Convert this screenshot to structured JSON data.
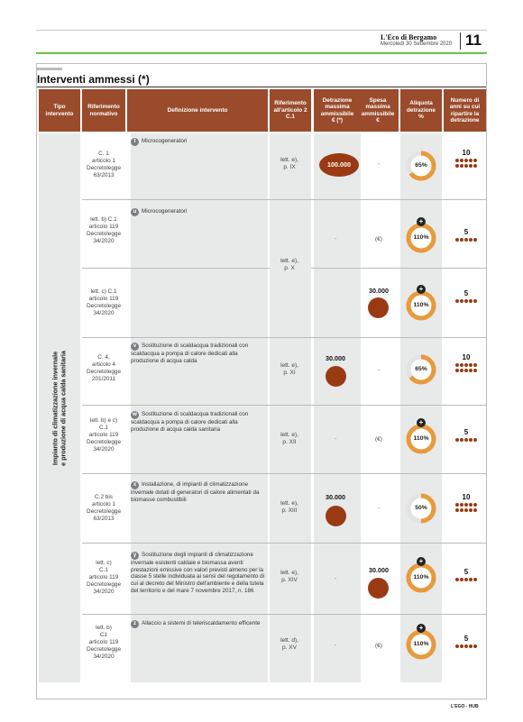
{
  "masthead": {
    "paper_name": "L'Eco di Bergamo",
    "date": "Mercoledì 30 Settembre 2020",
    "page_number": "11"
  },
  "panel": {
    "title": "Interventi ammessi (*)"
  },
  "headers": {
    "tipo": [
      "Tipo",
      "intervento"
    ],
    "riferimento": [
      "Riferimento",
      "normativo"
    ],
    "definizione": "Definizione intervento",
    "art2": [
      "Riferimento",
      "all'articolo 2",
      "C.1"
    ],
    "detrazione": [
      "Detrazione",
      "massima",
      "ammissibile",
      "€ (*)"
    ],
    "spesa": [
      "Spesa",
      "massima",
      "ammissibile",
      "€"
    ],
    "aliquota": [
      "Aliquota",
      "detrazione",
      "%"
    ],
    "anni": [
      "Numero di",
      "anni su cui",
      "ripartire la",
      "detrazione"
    ]
  },
  "tipo_intervento": [
    "Impianto di climatizzazione invernale",
    "e produzione di acqua calda sanitaria"
  ],
  "rows": [
    {
      "riferimento": [
        "C. 1",
        "articolo 1",
        "Decretolegge",
        "63/2013"
      ],
      "badge": "t",
      "definizione": "Microcogeneratori",
      "art2": [
        "lett. e),",
        "p. IX"
      ],
      "detrazione": "100.000",
      "spesa": "-",
      "aliquota": "65%",
      "aliquota_value": 65,
      "anni": "10"
    },
    {
      "riferimento": [
        "lett. b) C.1",
        "articolo 119",
        "Decretolegge",
        "34/2020"
      ],
      "badge": "u",
      "definizione": "Microcogeneratori",
      "art2": [
        "lett. e),",
        "p. X"
      ],
      "detrazione": "-",
      "spesa": "(€)",
      "aliquota": "110%",
      "aliquota_value": 110,
      "anni": "5"
    },
    {
      "riferimento": [
        "lett. c) C.1",
        "articolo 119",
        "Decretolegge",
        "34/2020"
      ],
      "badge": "",
      "definizione": "",
      "art2": [],
      "detrazione": "",
      "spesa": "30.000",
      "aliquota": "110%",
      "aliquota_value": 110,
      "anni": "5"
    },
    {
      "riferimento": [
        "C. 4,",
        "articolo 4",
        "Decretolegge",
        "201/2011"
      ],
      "badge": "v",
      "definizione": "Sostituzione di scaldacqua tradizionali con scaldacqua a pompa di calore dedicati alla produzione di acqua calda",
      "art2": [
        "lett. e),",
        "p. XI"
      ],
      "detrazione": "30.000",
      "spesa": "-",
      "aliquota": "65%",
      "aliquota_value": 65,
      "anni": "10"
    },
    {
      "riferimento": [
        "lett. b) e c)",
        "C.1",
        "articolo 119",
        "Decretolegge",
        "34/2020"
      ],
      "badge": "w",
      "definizione": "Sostituzione di scaldacqua tradizionali con scaldacqua a pompa di calore dedicati alla produzione di acqua calda sanitaria",
      "art2": [
        "lett. e),",
        "p. XII"
      ],
      "detrazione": "-",
      "spesa": "(€)",
      "aliquota": "110%",
      "aliquota_value": 110,
      "anni": "5"
    },
    {
      "riferimento": [
        "C.2 bis",
        "articolo 1",
        "Decretolegge",
        "63/2013"
      ],
      "badge": "x",
      "definizione": "Installazione, di impianti di climatizzazione invernale dotati di generatori di calore alimentati da biomasse combustibili",
      "art2": [
        "lett. e),",
        "p. XIII"
      ],
      "detrazione": "30.000",
      "spesa": "-",
      "aliquota": "50%",
      "aliquota_value": 50,
      "anni": "10"
    },
    {
      "riferimento": [
        "lett. c)",
        "C.1",
        "articolo 119",
        "Decretolegge",
        "34/2020"
      ],
      "badge": "y",
      "definizione": "Sostituzione degli impianti di climatizzazione invernale esistenti caldaie e biomassa aventi prestazioni emissive con valori previsti almeno per la classe 5 stelle individuata ai sensi del regolamento di cui al decreto del Ministro dell'ambiente e della tutela del territorio e del mare 7 novembre 2017, n. 186",
      "art2": [
        "lett. e),",
        "p. XIV"
      ],
      "detrazione": "-",
      "spesa": "30.000",
      "aliquota": "110%",
      "aliquota_value": 110,
      "anni": "5"
    },
    {
      "riferimento": [
        "lett. b)",
        "C1",
        "articolo 119",
        "Decretolegge",
        "34/2020"
      ],
      "badge": "z",
      "definizione": "Allaccio a sistemi di teleriscaldamento efficente",
      "art2": [
        "lett. d),",
        "p. XV"
      ],
      "detrazione": "-",
      "spesa": "(€)",
      "aliquota": "110%",
      "aliquota_value": 110,
      "anni": "5"
    }
  ],
  "colors": {
    "header": "#9a4b2c",
    "accent_dark": "#9a3a12",
    "gauge_orange": "#e89a3c",
    "gauge_track": "#e3e3e3",
    "green_rule": "#6cc24a"
  },
  "icons": {
    "plus": "+"
  },
  "credit": "L'EGO - HUB"
}
